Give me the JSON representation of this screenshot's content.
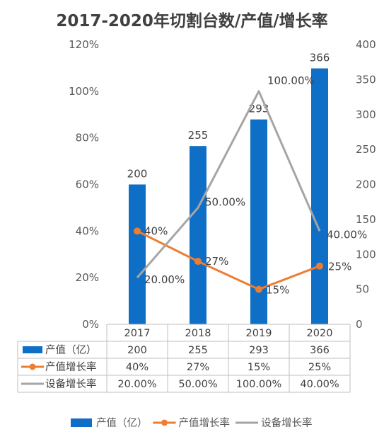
{
  "chart_data": {
    "type": "bar",
    "title": "2017-2020年切割台数/产值/增长率",
    "categories": [
      "2017",
      "2018",
      "2019",
      "2020"
    ],
    "left_axis": {
      "min": 0,
      "max": 1.2,
      "step": 0.2,
      "tick_labels": [
        "0%",
        "20%",
        "40%",
        "60%",
        "80%",
        "100%",
        "120%"
      ]
    },
    "right_axis": {
      "min": 0,
      "max": 400,
      "step": 50,
      "tick_labels": [
        "0",
        "50",
        "100",
        "150",
        "200",
        "250",
        "300",
        "350",
        "400"
      ]
    },
    "series": [
      {
        "name": "产值（亿）",
        "kind": "bar",
        "axis": "right",
        "color": "#0F6FC6",
        "values": [
          200,
          255,
          293,
          366
        ],
        "labels": [
          "200",
          "255",
          "293",
          "366"
        ]
      },
      {
        "name": "产值增长率",
        "kind": "line",
        "axis": "left",
        "color": "#ED7D31",
        "marker": true,
        "values": [
          0.4,
          0.27,
          0.15,
          0.25
        ],
        "labels": [
          "40%",
          "27%",
          "15%",
          "25%"
        ]
      },
      {
        "name": "设备增长率",
        "kind": "line",
        "axis": "left",
        "color": "#A5A5A5",
        "marker": false,
        "values": [
          0.2,
          0.5,
          1.0,
          0.4
        ],
        "labels": [
          "20.00%",
          "50.00%",
          "100.00%",
          "40.00%"
        ]
      }
    ],
    "data_table": true,
    "legend": "bottom",
    "grid": false
  }
}
